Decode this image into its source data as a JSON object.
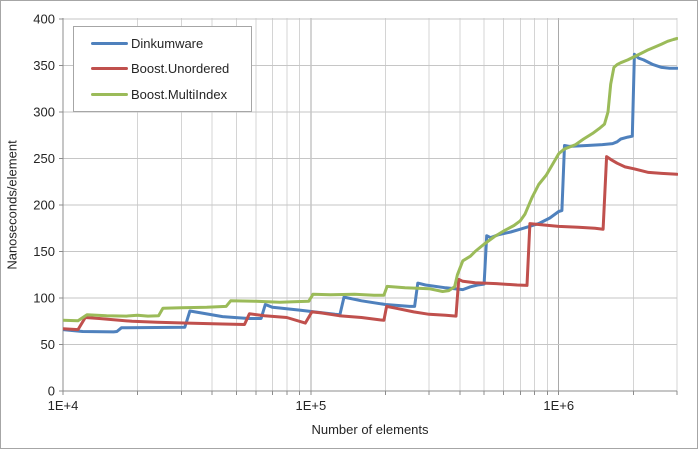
{
  "figure": {
    "y_axis_title": "Nanoseconds/element",
    "x_axis_title": "Number of elements"
  },
  "legend": {
    "position": "top-left-inside",
    "items": [
      {
        "label": "Dinkumware",
        "color": "#4F81BD"
      },
      {
        "label": "Boost.Unordered",
        "color": "#C0504D"
      },
      {
        "label": "Boost.MultiIndex",
        "color": "#9BBB59"
      }
    ]
  },
  "palette": {
    "axis_line": "#8c8c8c",
    "tick_mark": "#8c8c8c",
    "minor_gridline": "#d4d4d4",
    "major_gridline": "#a9a9a9",
    "horizontal_gridline": "#c6c6c6",
    "figure_border": "#a6a6a6",
    "text": "#252525",
    "background": "#ffffff"
  },
  "chart_data": {
    "type": "line",
    "title": "",
    "xlabel": "Number of elements",
    "ylabel": "Nanoseconds/element",
    "x_scale": "log10",
    "xlim": [
      10000,
      3000000
    ],
    "ylim": [
      0,
      400
    ],
    "y_tick_step": 50,
    "y_tick_labels": [
      "0",
      "50",
      "100",
      "150",
      "200",
      "250",
      "300",
      "350",
      "400"
    ],
    "x_major_ticks": [
      {
        "label": "1E+4",
        "value": 10000
      },
      {
        "label": "1E+5",
        "value": 100000
      },
      {
        "label": "1E+6",
        "value": 1000000
      }
    ],
    "x_minor_tick_multipliers": [
      2,
      3,
      4,
      5,
      6,
      7,
      8,
      9
    ],
    "grid": true,
    "legend_position": "top-left-inside",
    "series": [
      {
        "name": "Dinkumware",
        "color": "#4F81BD",
        "points": [
          [
            10000,
            66
          ],
          [
            11000,
            65
          ],
          [
            12000,
            64
          ],
          [
            16000,
            63.5
          ],
          [
            16500,
            64
          ],
          [
            17200,
            68
          ],
          [
            31000,
            68.5
          ],
          [
            32500,
            86
          ],
          [
            36000,
            84
          ],
          [
            44000,
            80
          ],
          [
            56000,
            78
          ],
          [
            63000,
            78
          ],
          [
            65500,
            93
          ],
          [
            70000,
            90
          ],
          [
            90000,
            87
          ],
          [
            125000,
            82.5
          ],
          [
            131000,
            82
          ],
          [
            136000,
            101
          ],
          [
            160000,
            97
          ],
          [
            200000,
            93
          ],
          [
            250000,
            91
          ],
          [
            262000,
            91
          ],
          [
            270000,
            116
          ],
          [
            290000,
            114
          ],
          [
            350000,
            111
          ],
          [
            410000,
            109
          ],
          [
            440000,
            112
          ],
          [
            470000,
            114
          ],
          [
            500000,
            115
          ],
          [
            512000,
            167
          ],
          [
            530000,
            165
          ],
          [
            570000,
            168
          ],
          [
            640000,
            171
          ],
          [
            700000,
            174
          ],
          [
            830000,
            180
          ],
          [
            920000,
            186
          ],
          [
            1000000,
            193
          ],
          [
            1030000,
            194
          ],
          [
            1055000,
            264
          ],
          [
            1100000,
            263
          ],
          [
            1300000,
            264
          ],
          [
            1500000,
            265
          ],
          [
            1650000,
            266
          ],
          [
            1720000,
            268
          ],
          [
            1780000,
            271
          ],
          [
            1900000,
            273
          ],
          [
            1980000,
            274
          ],
          [
            2020000,
            362
          ],
          [
            2100000,
            358
          ],
          [
            2200000,
            356
          ],
          [
            2400000,
            351
          ],
          [
            2600000,
            348
          ],
          [
            2800000,
            347
          ],
          [
            3000000,
            347
          ]
        ]
      },
      {
        "name": "Boost.Unordered",
        "color": "#C0504D",
        "points": [
          [
            10000,
            67
          ],
          [
            11500,
            66
          ],
          [
            12300,
            79
          ],
          [
            14000,
            78
          ],
          [
            19000,
            75
          ],
          [
            24000,
            74
          ],
          [
            32000,
            73
          ],
          [
            44000,
            72
          ],
          [
            54000,
            71.5
          ],
          [
            56500,
            83
          ],
          [
            65000,
            81
          ],
          [
            80000,
            79
          ],
          [
            95000,
            73
          ],
          [
            101000,
            85
          ],
          [
            110000,
            84
          ],
          [
            130000,
            81
          ],
          [
            160000,
            79
          ],
          [
            190000,
            76.5
          ],
          [
            197000,
            76
          ],
          [
            202000,
            91
          ],
          [
            220000,
            89
          ],
          [
            260000,
            85
          ],
          [
            300000,
            82.5
          ],
          [
            350000,
            81.5
          ],
          [
            385000,
            80.5
          ],
          [
            395000,
            120
          ],
          [
            410000,
            118
          ],
          [
            460000,
            116.5
          ],
          [
            560000,
            115.5
          ],
          [
            680000,
            114
          ],
          [
            745000,
            113.5
          ],
          [
            765000,
            180
          ],
          [
            830000,
            179
          ],
          [
            1000000,
            177
          ],
          [
            1200000,
            176
          ],
          [
            1400000,
            175
          ],
          [
            1510000,
            174
          ],
          [
            1560000,
            252
          ],
          [
            1620000,
            249
          ],
          [
            1720000,
            245
          ],
          [
            1850000,
            241
          ],
          [
            2000000,
            239
          ],
          [
            2300000,
            235
          ],
          [
            2600000,
            234
          ],
          [
            3000000,
            233
          ]
        ]
      },
      {
        "name": "Boost.MultiIndex",
        "color": "#9BBB59",
        "points": [
          [
            10000,
            76
          ],
          [
            11500,
            75.5
          ],
          [
            12500,
            82
          ],
          [
            15000,
            81
          ],
          [
            18000,
            80.5
          ],
          [
            20000,
            81.5
          ],
          [
            22000,
            80.5
          ],
          [
            24300,
            81
          ],
          [
            25300,
            89
          ],
          [
            30000,
            89.5
          ],
          [
            38000,
            90
          ],
          [
            45500,
            91
          ],
          [
            47500,
            97
          ],
          [
            60000,
            96.5
          ],
          [
            75000,
            95.5
          ],
          [
            85000,
            96
          ],
          [
            98000,
            96.5
          ],
          [
            102000,
            104
          ],
          [
            120000,
            103.5
          ],
          [
            150000,
            104
          ],
          [
            180000,
            103
          ],
          [
            197000,
            103
          ],
          [
            203000,
            112.5
          ],
          [
            240000,
            111
          ],
          [
            300000,
            110
          ],
          [
            340000,
            107
          ],
          [
            360000,
            108
          ],
          [
            380000,
            112
          ],
          [
            390000,
            125
          ],
          [
            410000,
            140
          ],
          [
            440000,
            145
          ],
          [
            460000,
            150
          ],
          [
            500000,
            158
          ],
          [
            550000,
            166
          ],
          [
            600000,
            172
          ],
          [
            660000,
            178
          ],
          [
            700000,
            183
          ],
          [
            730000,
            190
          ],
          [
            780000,
            208
          ],
          [
            830000,
            222
          ],
          [
            890000,
            232
          ],
          [
            950000,
            245
          ],
          [
            1000000,
            255
          ],
          [
            1050000,
            260
          ],
          [
            1170000,
            265
          ],
          [
            1260000,
            271
          ],
          [
            1370000,
            277
          ],
          [
            1470000,
            283
          ],
          [
            1530000,
            287
          ],
          [
            1580000,
            300
          ],
          [
            1620000,
            330
          ],
          [
            1670000,
            348
          ],
          [
            1720000,
            351
          ],
          [
            1780000,
            353
          ],
          [
            1900000,
            356
          ],
          [
            2000000,
            359
          ],
          [
            2150000,
            363
          ],
          [
            2300000,
            367
          ],
          [
            2450000,
            370
          ],
          [
            2600000,
            373
          ],
          [
            2750000,
            376
          ],
          [
            2900000,
            378
          ],
          [
            3000000,
            379
          ]
        ]
      }
    ]
  }
}
